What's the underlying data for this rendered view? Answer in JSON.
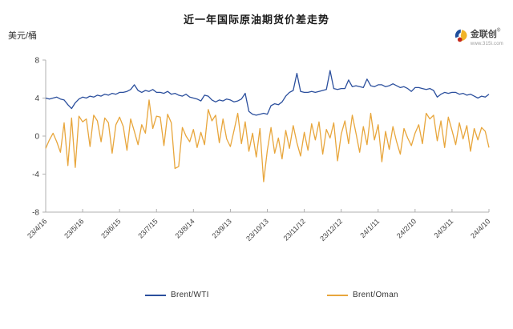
{
  "logo": {
    "name": "金联创",
    "reg_mark": "®",
    "url_text": "www.315i.com"
  },
  "chart_data": {
    "type": "line",
    "title": "近一年国际原油期货价差走势",
    "ylabel": "美元/桶",
    "xlabel": "",
    "ylim": [
      -8,
      8
    ],
    "yticks": [
      8,
      4,
      0,
      -4,
      -8
    ],
    "grid": false,
    "legend_position": "bottom",
    "x_tick_labels": [
      "23/4/16",
      "23/5/16",
      "23/6/15",
      "23/7/15",
      "23/8/14",
      "23/9/13",
      "23/10/13",
      "23/11/12",
      "23/12/12",
      "24/1/11",
      "24/2/10",
      "24/3/11",
      "24/4/10"
    ],
    "x_tick_indices": [
      0,
      10,
      20,
      30,
      40,
      50,
      60,
      70,
      80,
      90,
      100,
      110,
      120
    ],
    "series": [
      {
        "name": "Brent/WTI",
        "color": "#2b4f9d",
        "values": [
          4.0,
          3.9,
          4.0,
          4.1,
          3.9,
          3.8,
          3.3,
          2.9,
          3.5,
          3.9,
          4.1,
          4.0,
          4.2,
          4.1,
          4.3,
          4.2,
          4.4,
          4.3,
          4.5,
          4.4,
          4.6,
          4.6,
          4.7,
          4.9,
          5.4,
          4.8,
          4.6,
          4.8,
          4.7,
          4.9,
          4.6,
          4.6,
          4.5,
          4.7,
          4.4,
          4.5,
          4.3,
          4.2,
          4.4,
          4.1,
          4.0,
          3.9,
          3.7,
          4.3,
          4.2,
          3.8,
          3.6,
          3.8,
          3.7,
          3.9,
          3.8,
          3.6,
          3.7,
          3.9,
          4.5,
          2.6,
          2.3,
          2.2,
          2.3,
          2.4,
          2.3,
          3.2,
          3.4,
          3.3,
          3.6,
          4.2,
          4.6,
          4.8,
          6.6,
          4.7,
          4.6,
          4.6,
          4.7,
          4.6,
          4.7,
          4.8,
          4.9,
          6.9,
          5.0,
          4.9,
          5.0,
          5.0,
          5.9,
          5.2,
          5.3,
          5.2,
          5.1,
          6.0,
          5.3,
          5.2,
          5.4,
          5.4,
          5.2,
          5.3,
          5.5,
          5.3,
          5.1,
          5.2,
          5.0,
          4.7,
          5.1,
          5.1,
          5.0,
          4.9,
          5.0,
          4.8,
          4.1,
          4.4,
          4.6,
          4.5,
          4.6,
          4.6,
          4.4,
          4.5,
          4.3,
          4.4,
          4.2,
          4.0,
          4.2,
          4.1,
          4.4
        ]
      },
      {
        "name": "Brent/Oman",
        "color": "#e8a63c",
        "values": [
          -1.3,
          -0.4,
          0.3,
          -0.6,
          -1.7,
          1.4,
          -3.1,
          1.9,
          -3.3,
          2.1,
          1.5,
          1.8,
          -1.1,
          2.2,
          1.6,
          -0.6,
          1.9,
          1.4,
          -1.8,
          1.2,
          2.0,
          1.0,
          -1.5,
          1.8,
          0.5,
          -0.9,
          1.2,
          0.3,
          3.8,
          0.8,
          2.1,
          2.0,
          -1.0,
          2.3,
          1.4,
          -3.4,
          -3.2,
          0.9,
          0.0,
          -0.6,
          0.7,
          -1.2,
          0.4,
          -0.9,
          2.8,
          1.6,
          2.2,
          -0.7,
          1.8,
          -0.3,
          -1.1,
          0.6,
          2.4,
          -0.8,
          1.5,
          -1.6,
          0.3,
          -2.2,
          0.8,
          -4.8,
          -1.5,
          0.9,
          -1.8,
          -0.2,
          -2.4,
          0.6,
          -1.3,
          1.1,
          -0.7,
          -2.1,
          0.4,
          -1.5,
          1.3,
          -0.4,
          1.5,
          -1.9,
          0.7,
          -0.2,
          1.4,
          -2.6,
          0.2,
          1.6,
          -0.8,
          2.2,
          0.3,
          -1.7,
          1.0,
          -0.9,
          2.4,
          -0.4,
          1.2,
          -2.7,
          0.5,
          -1.4,
          1.0,
          -0.6,
          -1.9,
          0.8,
          -0.2,
          -1.0,
          0.3,
          1.2,
          -0.8,
          2.4,
          1.8,
          2.2,
          -0.5,
          1.6,
          -1.2,
          2.0,
          0.6,
          -0.9,
          1.4,
          -0.3,
          1.1,
          -1.6,
          0.8,
          -0.4,
          0.9,
          0.5,
          -1.2
        ]
      }
    ]
  }
}
